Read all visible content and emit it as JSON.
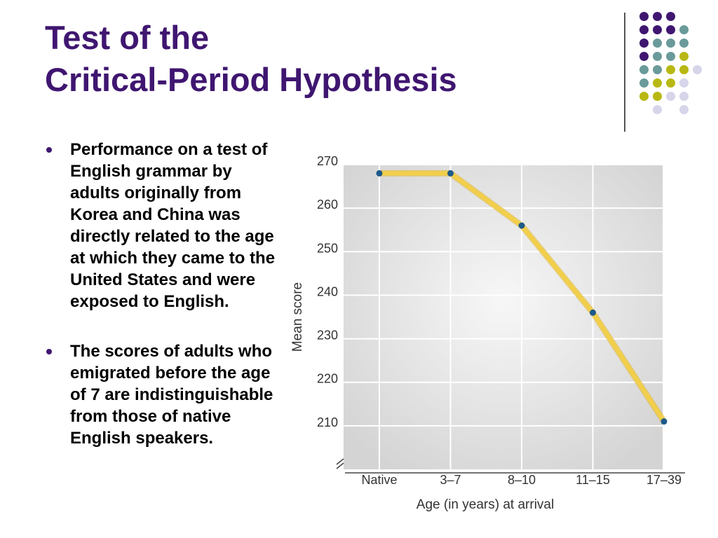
{
  "slide": {
    "title_line1": "Test of the",
    "title_line2": "Critical-Period Hypothesis",
    "bullets": [
      "Performance on a test of English grammar by adults originally from Korea and China was directly related to the age at which they came to the United States and were exposed to English.",
      "The scores of adults who emigrated before the age of 7 are indistinguishable from those of native English speakers."
    ]
  },
  "theme_colors": {
    "title": "#3f1670",
    "purple": "#3f1670",
    "teal": "#6a9a9a",
    "olive": "#b8b814",
    "lavender": "#d6d5ea"
  },
  "chart_data": {
    "type": "line",
    "categories": [
      "Native",
      "3–7",
      "8–10",
      "11–15",
      "17–39"
    ],
    "series": [
      {
        "values": [
          268,
          268,
          256,
          236,
          211
        ]
      }
    ],
    "xlabel": "Age (in years) at arrival",
    "ylabel": "Mean score",
    "yticks": [
      210,
      220,
      230,
      240,
      250,
      260,
      270
    ],
    "ylim": [
      200,
      270
    ],
    "axis_break": true,
    "grid": true,
    "line_color": "#f2cf4a",
    "marker_color": "#1d5a8a"
  }
}
